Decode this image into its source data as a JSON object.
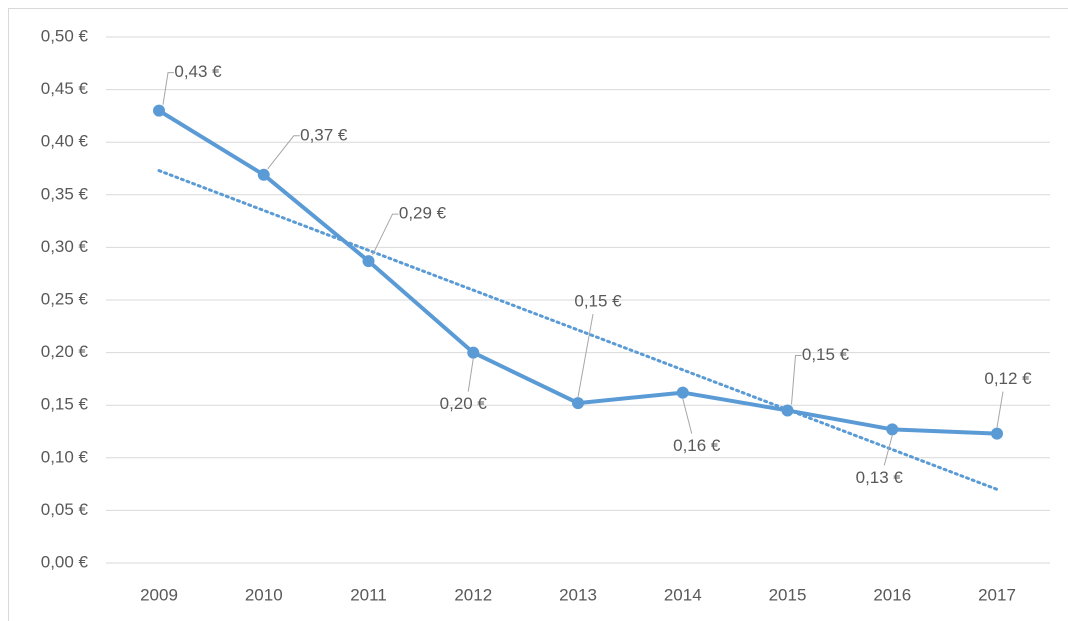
{
  "chart_data": {
    "type": "line",
    "categories": [
      "2009",
      "2010",
      "2011",
      "2012",
      "2013",
      "2014",
      "2015",
      "2016",
      "2017"
    ],
    "series": [
      {
        "color": "#5b9bd5",
        "values": [
          0.43,
          0.369,
          0.287,
          0.2,
          0.152,
          0.162,
          0.145,
          0.127,
          0.123
        ],
        "value_labels": [
          "0,43 €",
          "0,37 €",
          "0,29 €",
          "0,20 €",
          "0,15 €",
          "0,16 €",
          "0,15 €",
          "0,13 €",
          "0,12 €"
        ]
      }
    ],
    "trendline": {
      "color": "#5b9bd5",
      "values": [
        0.373,
        0.07
      ]
    },
    "ylim": [
      0,
      0.5
    ],
    "yticks": [
      {
        "value": 0,
        "label": "0,00 €"
      },
      {
        "value": 0.05,
        "label": "0,05 €"
      },
      {
        "value": 0.1,
        "label": "0,10 €"
      },
      {
        "value": 0.15,
        "label": "0,15 €"
      },
      {
        "value": 0.2,
        "label": "0,20 €"
      },
      {
        "value": 0.25,
        "label": "0,25 €"
      },
      {
        "value": 0.3,
        "label": "0,30 €"
      },
      {
        "value": 0.35,
        "label": "0,35 €"
      },
      {
        "value": 0.4,
        "label": "0,40 €"
      },
      {
        "value": 0.45,
        "label": "0,45 €"
      },
      {
        "value": 0.5,
        "label": "0,50 €"
      }
    ],
    "grid": true
  }
}
